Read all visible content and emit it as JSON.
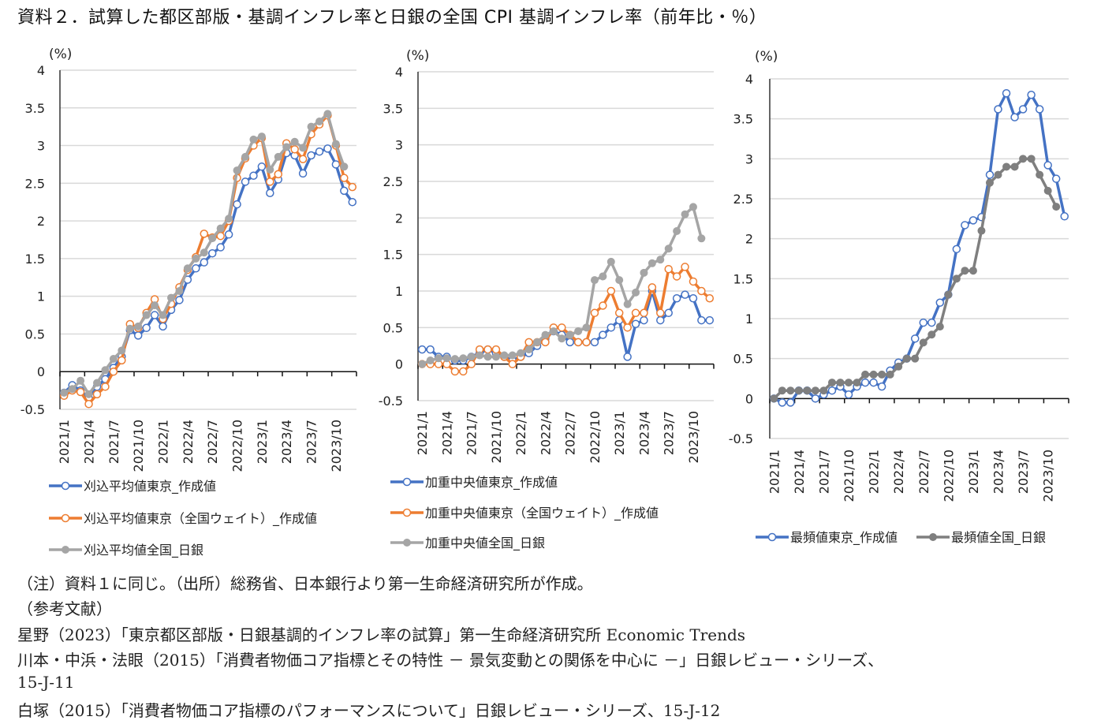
{
  "title": "資料２．試算した都区部版・基調インフレ率と日銀の全国 CPI 基調インフレ率（前年比・％）",
  "colors": {
    "blue": "#4472C4",
    "orange": "#ED7D31",
    "gray": "#A5A5A5",
    "darkgray": "#7F7F7F",
    "grid": "#D9D9D9"
  },
  "chart_data": [
    {
      "type": "line",
      "ylabel": "(%)",
      "ylim": [
        -0.5,
        4
      ],
      "yticks": [
        "4",
        "3.5",
        "3",
        "2.5",
        "2",
        "1.5",
        "1",
        "0.5",
        "0",
        "-0.5"
      ],
      "xtick_labels": [
        "2021/1",
        "2021/4",
        "2021/7",
        "2021/10",
        "2022/1",
        "2022/4",
        "2022/7",
        "2022/10",
        "2023/1",
        "2023/4",
        "2023/7",
        "2023/10"
      ],
      "grid": true,
      "legend": "bottom",
      "series": [
        {
          "name": "刈込平均値東京_作成値",
          "color": "#4472C4",
          "marker": "open",
          "values": [
            -0.28,
            -0.18,
            -0.25,
            -0.35,
            -0.2,
            -0.1,
            0.05,
            0.2,
            0.55,
            0.48,
            0.58,
            0.75,
            0.6,
            0.82,
            0.95,
            1.22,
            1.37,
            1.45,
            1.57,
            1.65,
            1.82,
            2.22,
            2.52,
            2.6,
            2.72,
            2.37,
            2.55,
            2.9,
            2.87,
            2.63,
            2.87,
            2.92,
            2.96,
            2.75,
            2.4,
            2.25
          ]
        },
        {
          "name": "刈込平均値東京（全国ウェイト）_作成値",
          "color": "#ED7D31",
          "marker": "open",
          "values": [
            -0.32,
            -0.25,
            -0.27,
            -0.43,
            -0.3,
            -0.2,
            0.0,
            0.15,
            0.63,
            0.58,
            0.78,
            0.96,
            0.7,
            0.9,
            1.12,
            1.35,
            1.52,
            1.83,
            1.78,
            1.8,
            2.0,
            2.57,
            2.83,
            3.0,
            3.1,
            2.52,
            2.62,
            3.03,
            2.95,
            2.82,
            3.15,
            3.28,
            3.4,
            3.0,
            2.57,
            2.45
          ]
        },
        {
          "name": "刈込平均値全国_日銀",
          "color": "#A5A5A5",
          "marker": "filled",
          "values": [
            -0.28,
            -0.23,
            -0.12,
            -0.3,
            -0.15,
            0.02,
            0.17,
            0.28,
            0.57,
            0.6,
            0.75,
            0.88,
            0.75,
            0.98,
            1.07,
            1.37,
            1.5,
            1.58,
            1.77,
            1.9,
            2.03,
            2.67,
            2.85,
            3.08,
            3.12,
            2.68,
            2.85,
            2.98,
            3.05,
            2.97,
            3.25,
            3.32,
            3.42,
            3.02,
            2.72
          ]
        }
      ]
    },
    {
      "type": "line",
      "ylabel": "(%)",
      "ylim": [
        -0.5,
        4
      ],
      "yticks": [
        "4",
        "3.5",
        "3",
        "2.5",
        "2",
        "1.5",
        "1",
        "0.5",
        "0",
        "-0.5"
      ],
      "xtick_labels": [
        "2021/1",
        "2021/4",
        "2021/7",
        "2021/10",
        "2022/1",
        "2022/4",
        "2022/7",
        "2022/10",
        "2023/1",
        "2023/4",
        "2023/7",
        "2023/10"
      ],
      "grid": true,
      "legend": "bottom",
      "series": [
        {
          "name": "加重中央値東京_作成値",
          "color": "#4472C4",
          "marker": "open",
          "values": [
            0.2,
            0.2,
            0.1,
            0.1,
            0.05,
            0.05,
            0.1,
            0.15,
            0.2,
            0.15,
            0.1,
            0.05,
            0.1,
            0.15,
            0.25,
            0.35,
            0.45,
            0.4,
            0.3,
            0.3,
            0.3,
            0.3,
            0.4,
            0.5,
            0.6,
            0.1,
            0.55,
            0.6,
            1.0,
            0.6,
            0.7,
            0.9,
            0.95,
            0.9,
            0.6,
            0.6
          ]
        },
        {
          "name": "加重中央値東京（全国ウェイト）_作成値",
          "color": "#ED7D31",
          "marker": "open",
          "values": [
            0,
            0,
            0,
            0,
            -0.1,
            -0.1,
            0.0,
            0.2,
            0.2,
            0.2,
            0.1,
            0.0,
            0.1,
            0.3,
            0.3,
            0.3,
            0.5,
            0.5,
            0.4,
            0.3,
            0.3,
            0.7,
            0.8,
            1.0,
            0.7,
            0.5,
            0.7,
            0.7,
            1.05,
            0.7,
            1.3,
            1.2,
            1.33,
            1.13,
            1.0,
            0.9
          ]
        },
        {
          "name": "加重中央値全国_日銀",
          "color": "#A5A5A5",
          "marker": "filled",
          "values": [
            0,
            0.05,
            0.08,
            0.08,
            0.07,
            0.08,
            0.1,
            0.12,
            0.1,
            0.1,
            0.12,
            0.12,
            0.15,
            0.2,
            0.3,
            0.4,
            0.45,
            0.35,
            0.4,
            0.45,
            0.5,
            1.15,
            1.2,
            1.4,
            1.15,
            0.82,
            0.98,
            1.25,
            1.38,
            1.43,
            1.58,
            1.82,
            2.05,
            2.15,
            1.72
          ]
        }
      ]
    },
    {
      "type": "line",
      "ylabel": "(%)",
      "ylim": [
        -0.5,
        4
      ],
      "yticks": [
        "4",
        "3.5",
        "3",
        "2.5",
        "2",
        "1.5",
        "1",
        "0.5",
        "0",
        "-0.5"
      ],
      "xtick_labels": [
        "2021/1",
        "2021/4",
        "2021/7",
        "2021/10",
        "2022/1",
        "2022/4",
        "2022/7",
        "2022/10",
        "2023/1",
        "2023/4",
        "2023/7",
        "2023/10"
      ],
      "grid": true,
      "legend": "bottom",
      "series": [
        {
          "name": "最頻値東京_作成値",
          "color": "#4472C4",
          "marker": "open",
          "values": [
            0,
            -0.05,
            -0.05,
            0.1,
            0.1,
            0,
            0.05,
            0.1,
            0.15,
            0.05,
            0.15,
            0.2,
            0.2,
            0.15,
            0.35,
            0.45,
            0.5,
            0.75,
            0.95,
            0.95,
            1.2,
            1.3,
            1.87,
            2.17,
            2.23,
            2.27,
            2.8,
            3.62,
            3.82,
            3.52,
            3.62,
            3.8,
            3.62,
            2.92,
            2.75,
            2.28
          ]
        },
        {
          "name": "最頻値全国_日銀",
          "color": "#7F7F7F",
          "marker": "filled",
          "values": [
            0,
            0.1,
            0.1,
            0.1,
            0.1,
            0.1,
            0.1,
            0.2,
            0.2,
            0.2,
            0.2,
            0.3,
            0.3,
            0.3,
            0.3,
            0.4,
            0.5,
            0.5,
            0.7,
            0.8,
            0.9,
            1.3,
            1.5,
            1.6,
            1.6,
            2.1,
            2.7,
            2.8,
            2.9,
            2.9,
            3.0,
            3.0,
            2.8,
            2.6,
            2.4
          ]
        }
      ]
    }
  ],
  "notes": [
    "（注）資料１に同じ。（出所）総務省、日本銀行より第一生命経済研究所が作成。",
    "（参考文献）",
    "星野（2023）「東京都区部版・日銀基調的インフレ率の試算」第一生命経済研究所 Economic Trends",
    "川本・中浜・法眼（2015）「消費者物価コア指標とその特性 － 景気変動との関係を中心に －」日銀レビュー・シリーズ、",
    "15-J-11",
    "白塚（2015）「消費者物価コア指標のパフォーマンスについて」日銀レビュー・シリーズ、15-J-12"
  ]
}
